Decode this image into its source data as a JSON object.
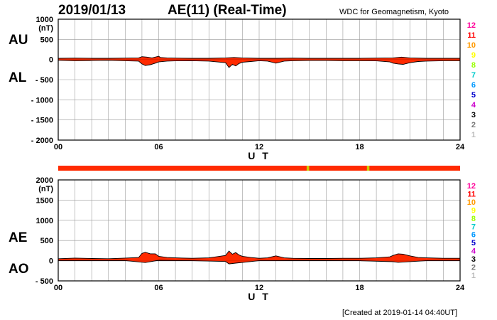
{
  "header": {
    "date": "2019/01/13",
    "title": "AE(11) (Real-Time)",
    "source": "WDC for Geomagnetism, Kyoto"
  },
  "footer": {
    "created": "[Created at 2019-01-14 04:40UT]"
  },
  "colors": {
    "fill": "#ff2a00",
    "grid": "#999999",
    "status_bar": "#ff2a00",
    "status_marker": "#cccc00"
  },
  "station_counts": {
    "labels": [
      "12",
      "11",
      "10",
      "9",
      "8",
      "7",
      "6",
      "5",
      "4",
      "3",
      "2",
      "1"
    ],
    "colors": [
      "#ff0099",
      "#ff0000",
      "#ff9900",
      "#ffff00",
      "#99ff00",
      "#00cccc",
      "#0099ff",
      "#0000cc",
      "#cc00cc",
      "#000000",
      "#777777",
      "#bbbbbb"
    ]
  },
  "status_bar": {
    "description": "Number of stations used (color-coded)",
    "default_count": 11,
    "markers_ut_hours": [
      14.9,
      18.5
    ]
  },
  "chart_data": [
    {
      "type": "area",
      "panel": "AU/AL",
      "indices": [
        "AU",
        "AL"
      ],
      "yunit": "(nT)",
      "xlabel": "U T",
      "xlim": [
        0,
        24
      ],
      "xticks": [
        0,
        6,
        12,
        18,
        24
      ],
      "xtick_labels": [
        "00",
        "06",
        "12",
        "18",
        "24"
      ],
      "ylim": [
        -2000,
        1000
      ],
      "yticks": [
        1000,
        500,
        0,
        -500,
        -1000,
        -1500,
        -2000
      ],
      "ytick_labels": [
        "1000",
        "500",
        "0",
        "- 500",
        "- 1000",
        "- 1500",
        "- 2000"
      ],
      "grid": true,
      "series": [
        {
          "name": "AU",
          "x": [
            0,
            1,
            2,
            3,
            4,
            4.8,
            5.0,
            5.3,
            5.6,
            6.0,
            6.1,
            6.5,
            7,
            8,
            9,
            10,
            10.5,
            11,
            12,
            13,
            14,
            15,
            16,
            17,
            18,
            19,
            20,
            20.5,
            21,
            22,
            23,
            24
          ],
          "values": [
            30,
            35,
            30,
            30,
            35,
            40,
            70,
            60,
            40,
            80,
            50,
            40,
            35,
            30,
            30,
            40,
            50,
            40,
            30,
            30,
            35,
            30,
            30,
            30,
            30,
            35,
            40,
            60,
            40,
            30,
            30,
            30
          ]
        },
        {
          "name": "AL",
          "x": [
            0,
            1,
            2,
            3,
            4,
            4.8,
            5.0,
            5.2,
            5.5,
            5.8,
            6.0,
            6.5,
            7,
            8,
            9,
            9.5,
            10.0,
            10.2,
            10.4,
            10.6,
            10.8,
            11,
            11.5,
            12,
            12.5,
            13,
            13.5,
            14,
            15,
            16,
            17,
            18,
            19,
            19.8,
            20.0,
            20.3,
            20.6,
            21,
            21.5,
            22,
            23,
            24
          ],
          "values": [
            -20,
            -30,
            -25,
            -20,
            -30,
            -40,
            -110,
            -150,
            -130,
            -90,
            -60,
            -40,
            -35,
            -30,
            -40,
            -60,
            -80,
            -200,
            -120,
            -160,
            -100,
            -70,
            -50,
            -30,
            -40,
            -90,
            -40,
            -30,
            -25,
            -25,
            -30,
            -30,
            -35,
            -60,
            -90,
            -110,
            -120,
            -80,
            -50,
            -40,
            -30,
            -30
          ]
        }
      ]
    },
    {
      "type": "area",
      "panel": "AE/AO",
      "indices": [
        "AE",
        "AO"
      ],
      "yunit": "(nT)",
      "xlabel": "U T",
      "xlim": [
        0,
        24
      ],
      "xticks": [
        0,
        6,
        12,
        18,
        24
      ],
      "xtick_labels": [
        "00",
        "06",
        "12",
        "18",
        "24"
      ],
      "ylim": [
        -500,
        2000
      ],
      "yticks": [
        2000,
        1500,
        1000,
        500,
        0,
        -500
      ],
      "ytick_labels": [
        "2000",
        "1500",
        "1000",
        "500",
        "0",
        "- 500"
      ],
      "grid": true,
      "series": [
        {
          "name": "AE",
          "x": [
            0,
            1,
            2,
            3,
            4,
            4.8,
            5.0,
            5.2,
            5.5,
            5.8,
            6.0,
            6.5,
            7,
            8,
            9,
            9.5,
            10.0,
            10.2,
            10.4,
            10.6,
            10.8,
            11,
            11.5,
            12,
            12.5,
            13,
            13.5,
            14,
            15,
            16,
            17,
            18,
            19,
            19.8,
            20.0,
            20.3,
            20.6,
            21,
            21.5,
            22,
            23,
            24
          ],
          "values": [
            50,
            65,
            55,
            50,
            65,
            80,
            180,
            210,
            170,
            170,
            110,
            80,
            70,
            60,
            70,
            100,
            130,
            240,
            160,
            200,
            140,
            110,
            80,
            60,
            70,
            120,
            70,
            60,
            55,
            55,
            60,
            60,
            70,
            95,
            130,
            170,
            160,
            120,
            80,
            70,
            60,
            60
          ]
        },
        {
          "name": "AO",
          "x": [
            0,
            2,
            4,
            5.2,
            6,
            8,
            10,
            10.2,
            10.6,
            12,
            14,
            16,
            18,
            20,
            20.3,
            22,
            24
          ],
          "values": [
            5,
            3,
            3,
            -45,
            10,
            0,
            -20,
            -80,
            -60,
            0,
            2,
            2,
            0,
            -25,
            -40,
            0,
            0
          ]
        }
      ]
    }
  ]
}
